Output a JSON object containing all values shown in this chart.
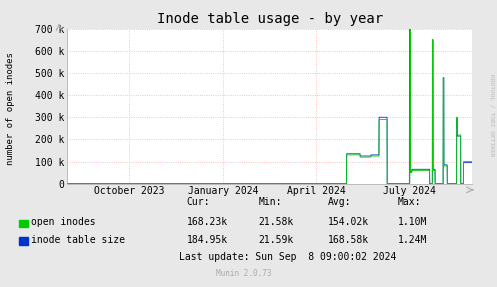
{
  "title": "Inode table usage - by year",
  "ylabel": "number of open inodes",
  "bg_color": "#e8e8e8",
  "plot_bg_color": "#ffffff",
  "grid_color": "#ffaaaa",
  "ylim": [
    0,
    700000
  ],
  "yticks": [
    0,
    100000,
    200000,
    300000,
    400000,
    500000,
    600000,
    700000
  ],
  "ytick_labels": [
    "0",
    "100 k",
    "200 k",
    "300 k",
    "400 k",
    "500 k",
    "600 k",
    "700 k"
  ],
  "xticklabels": [
    "October 2023",
    "January 2024",
    "April 2024",
    "July 2024"
  ],
  "open_inodes_color": "#00cc00",
  "inode_table_color": "#0033cc",
  "legend": [
    {
      "label": "open inodes",
      "color": "#00cc00"
    },
    {
      "label": "inode table size",
      "color": "#0033cc"
    }
  ],
  "legend_stats": {
    "headers": [
      "Cur:",
      "Min:",
      "Avg:",
      "Max:"
    ],
    "open_inodes": [
      "168.23k",
      "21.58k",
      "154.02k",
      "1.10M"
    ],
    "inode_table": [
      "184.95k",
      "21.59k",
      "168.58k",
      "1.24M"
    ]
  },
  "last_update": "Last update: Sun Sep  8 09:00:02 2024",
  "munin_version": "Munin 2.0.73",
  "rrdtool_label": "RRDTOOL / TOBI OETIKER",
  "title_fontsize": 10,
  "label_fontsize": 7,
  "tick_fontsize": 7,
  "legend_fontsize": 7
}
